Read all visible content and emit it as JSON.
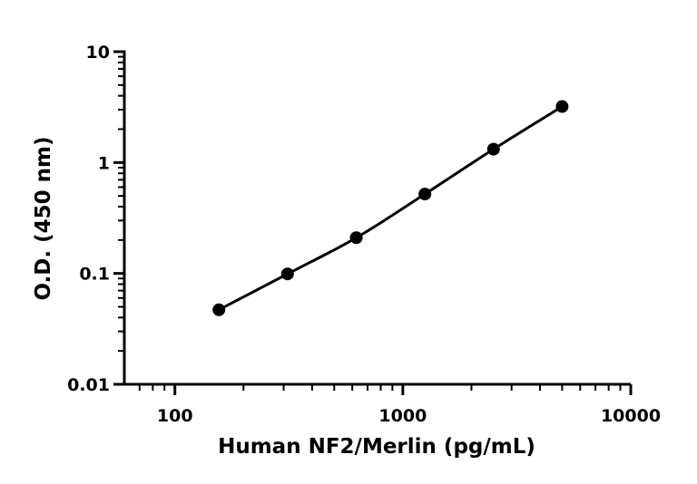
{
  "chart_data": {
    "type": "scatter",
    "title": "",
    "xlabel": "Human NF2/Merlin (pg/mL)",
    "ylabel": "O.D. (450 nm)",
    "x_scale": "log",
    "y_scale": "log",
    "xlim": [
      60,
      10000
    ],
    "ylim": [
      0.01,
      10
    ],
    "x_ticks": [
      100,
      1000,
      10000
    ],
    "x_tick_labels": [
      "100",
      "1000",
      "10000"
    ],
    "y_ticks": [
      0.01,
      0.1,
      1,
      10
    ],
    "y_tick_labels": [
      "0.01",
      "0.1",
      "1",
      "10"
    ],
    "grid": false,
    "legend": "none",
    "series": [
      {
        "x": [
          156,
          312,
          625,
          1250,
          2500,
          5000
        ],
        "y": [
          0.047,
          0.099,
          0.21,
          0.52,
          1.32,
          3.2
        ],
        "fit": "curve",
        "color": "#000000"
      }
    ]
  }
}
